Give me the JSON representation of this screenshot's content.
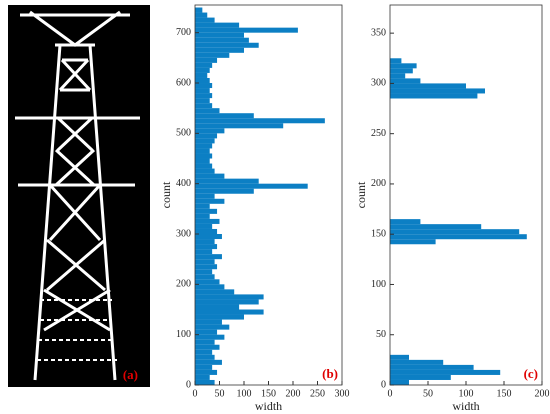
{
  "image_panel": {
    "label": "(a)"
  },
  "chart_data": [
    {
      "type": "histogram",
      "orientation": "horizontal",
      "panel_label": "(b)",
      "xlabel": "width",
      "ylabel": "count",
      "color": "#0c7fc4",
      "bins": [
        0,
        10,
        20,
        30,
        40,
        50,
        60,
        70,
        80,
        90,
        100,
        110,
        120,
        130,
        140,
        150,
        160,
        170,
        180,
        190,
        200,
        210,
        220,
        230,
        240,
        250,
        260,
        270,
        280,
        290,
        300,
        310,
        320,
        330,
        340,
        350,
        360,
        370,
        380,
        390,
        400,
        410,
        420,
        430,
        440,
        450,
        460,
        470,
        480,
        490,
        500,
        510,
        520,
        530,
        540,
        550,
        560,
        570,
        580,
        590,
        600,
        610,
        620,
        630,
        640,
        650,
        660,
        670,
        680,
        690,
        700,
        710,
        720,
        730,
        740,
        750
      ],
      "values": [
        40,
        30,
        45,
        35,
        55,
        40,
        35,
        50,
        40,
        60,
        45,
        70,
        55,
        100,
        140,
        90,
        130,
        140,
        80,
        60,
        50,
        40,
        35,
        45,
        40,
        55,
        35,
        45,
        40,
        55,
        45,
        35,
        50,
        30,
        45,
        30,
        60,
        40,
        120,
        230,
        130,
        60,
        40,
        35,
        30,
        35,
        30,
        35,
        40,
        45,
        60,
        180,
        265,
        120,
        50,
        35,
        30,
        35,
        30,
        35,
        30,
        25,
        30,
        35,
        45,
        70,
        100,
        130,
        110,
        100,
        210,
        90,
        40,
        25,
        15
      ],
      "xlim": [
        0,
        300
      ],
      "xticks": [
        0,
        50,
        100,
        150,
        200,
        250,
        300
      ],
      "ylim": [
        0,
        755
      ],
      "yticks": [
        0,
        100,
        200,
        300,
        400,
        500,
        600,
        700
      ]
    },
    {
      "type": "histogram",
      "orientation": "horizontal",
      "panel_label": "(c)",
      "xlabel": "width",
      "ylabel": "count",
      "color": "#0c7fc4",
      "bins": [
        0,
        5,
        10,
        15,
        20,
        25,
        30,
        35,
        40,
        45,
        50,
        55,
        60,
        65,
        70,
        75,
        80,
        85,
        90,
        95,
        100,
        105,
        110,
        115,
        120,
        125,
        130,
        135,
        140,
        145,
        150,
        155,
        160,
        165,
        170,
        175,
        180,
        185,
        190,
        195,
        200,
        205,
        210,
        215,
        220,
        225,
        230,
        235,
        240,
        245,
        250,
        255,
        260,
        265,
        270,
        275,
        280,
        285,
        290,
        295,
        300,
        305,
        310,
        315,
        320,
        325
      ],
      "values": [
        25,
        80,
        145,
        110,
        70,
        25,
        0,
        0,
        0,
        0,
        0,
        0,
        0,
        0,
        0,
        0,
        0,
        0,
        0,
        0,
        0,
        0,
        0,
        0,
        0,
        0,
        0,
        0,
        60,
        180,
        170,
        120,
        40,
        0,
        0,
        0,
        0,
        0,
        0,
        0,
        0,
        0,
        0,
        0,
        0,
        0,
        0,
        0,
        0,
        0,
        0,
        0,
        0,
        0,
        0,
        0,
        0,
        115,
        125,
        100,
        40,
        20,
        30,
        35,
        15
      ],
      "xlim": [
        0,
        200
      ],
      "xticks": [
        0,
        50,
        100,
        150,
        200
      ],
      "ylim": [
        0,
        378
      ],
      "yticks": [
        0,
        50,
        100,
        150,
        200,
        250,
        300,
        350
      ]
    }
  ]
}
